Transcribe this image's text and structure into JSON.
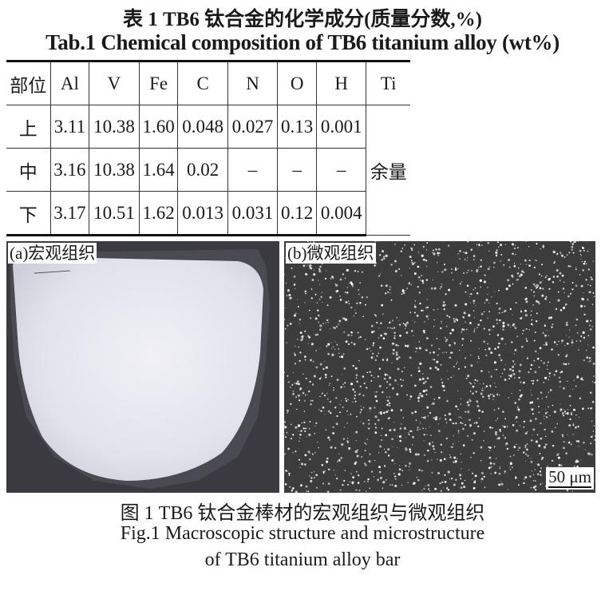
{
  "table_caption_cn": "表 1  TB6 钛合金的化学成分(质量分数,%)",
  "table_caption_en": "Tab.1  Chemical composition of TB6 titanium alloy (wt%)",
  "table": {
    "headers": [
      "部位",
      "Al",
      "V",
      "Fe",
      "C",
      "N",
      "O",
      "H",
      "Ti"
    ],
    "rows": [
      [
        "上",
        "3.11",
        "10.38",
        "1.60",
        "0.048",
        "0.027",
        "0.13",
        "0.001"
      ],
      [
        "中",
        "3.16",
        "10.38",
        "1.64",
        "0.02",
        "–",
        "–",
        "–"
      ],
      [
        "下",
        "3.17",
        "10.51",
        "1.62",
        "0.013",
        "0.031",
        "0.12",
        "0.004"
      ]
    ],
    "ti_value": "余量"
  },
  "figure": {
    "panel_a_label": "(a)宏观组织",
    "panel_b_label": "(b)微观组织",
    "scale_bar": "50 μm",
    "caption_cn": "图 1  TB6 钛合金棒材的宏观组织与微观组织",
    "caption_en_1": "Fig.1  Macroscopic structure and microstructure",
    "caption_en_2": "of TB6 titanium alloy bar"
  }
}
